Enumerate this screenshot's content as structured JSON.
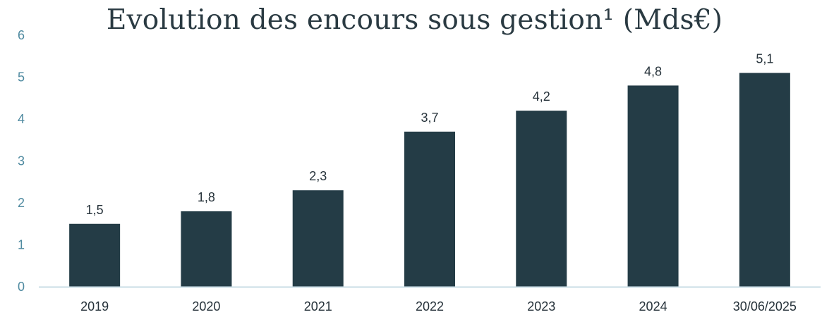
{
  "chart_data": {
    "type": "bar",
    "title": "Evolution des encours sous gestion¹ (Mds€)",
    "categories": [
      "2019",
      "2020",
      "2021",
      "2022",
      "2023",
      "2024",
      "30/06/2025"
    ],
    "values": [
      1.5,
      1.8,
      2.3,
      3.7,
      4.2,
      4.8,
      5.1
    ],
    "data_labels": [
      "1,5",
      "1,8",
      "2,3",
      "3,7",
      "4,2",
      "4,8",
      "5,1"
    ],
    "yticks": [
      "0",
      "1",
      "2",
      "3",
      "4",
      "5",
      "6"
    ],
    "ylim": [
      0,
      6
    ],
    "xlabel": "",
    "ylabel": "",
    "grid": false,
    "legend": "none",
    "colors": {
      "bar": "#243c46",
      "axis": "#c9dde5",
      "ytick": "#4f8aa0",
      "text": "#26323a"
    }
  }
}
